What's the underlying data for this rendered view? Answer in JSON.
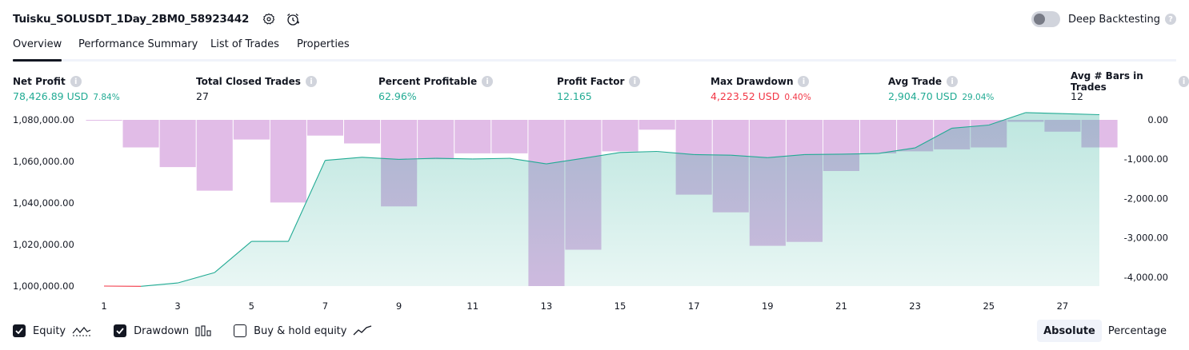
{
  "header": {
    "strategy_name": "Tuisku_SOLUSDT_1Day_2BM0_58923442",
    "deep_backtesting_label": "Deep Backtesting"
  },
  "tabs": [
    "Overview",
    "Performance Summary",
    "List of Trades",
    "Properties"
  ],
  "stats": [
    {
      "label": "Net Profit",
      "value": "78,426.89 USD",
      "sub": "7.84%",
      "color": "#22ab94"
    },
    {
      "label": "Total Closed Trades",
      "value": "27",
      "sub": "",
      "color": "#131722"
    },
    {
      "label": "Percent Profitable",
      "value": "62.96%",
      "sub": "",
      "color": "#22ab94"
    },
    {
      "label": "Profit Factor",
      "value": "12.165",
      "sub": "",
      "color": "#22ab94"
    },
    {
      "label": "Max Drawdown",
      "value": "4,223.52 USD",
      "sub": "0.40%",
      "color": "#f23645"
    },
    {
      "label": "Avg Trade",
      "value": "2,904.70 USD",
      "sub": "29.04%",
      "color": "#22ab94"
    },
    {
      "label": "Avg # Bars in Trades",
      "value": "12",
      "sub": "",
      "color": "#131722"
    }
  ],
  "chart_data": {
    "type": "area",
    "left_axis_ticks": [
      "1,080,000.00",
      "1,060,000.00",
      "1,040,000.00",
      "1,020,000.00",
      "1,000,000.00"
    ],
    "right_axis_ticks": [
      "0.00",
      "-1,000.00",
      "-2,000.00",
      "-3,000.00",
      "-4,000.00"
    ],
    "x_ticks": [
      "1",
      "3",
      "5",
      "7",
      "9",
      "11",
      "13",
      "15",
      "17",
      "19",
      "21",
      "23",
      "25",
      "27"
    ],
    "equity": {
      "x": [
        1,
        2,
        3,
        4,
        5,
        6,
        7,
        8,
        9,
        10,
        11,
        12,
        13,
        14,
        15,
        16,
        17,
        18,
        19,
        20,
        21,
        22,
        23,
        24,
        25,
        26,
        27,
        28
      ],
      "values": [
        1000000,
        999900,
        1001500,
        1006500,
        1021500,
        1021500,
        1060500,
        1062000,
        1061000,
        1061500,
        1061200,
        1061500,
        1058800,
        1061500,
        1064300,
        1064800,
        1063300,
        1063000,
        1061800,
        1063300,
        1063500,
        1063800,
        1066500,
        1076000,
        1077500,
        1083500,
        1083000,
        1082500
      ],
      "color_up": "#22ab94",
      "color_down": "#f23645"
    },
    "drawdown": {
      "x": [
        1,
        2,
        3,
        4,
        5,
        6,
        7,
        8,
        9,
        10,
        11,
        12,
        13,
        14,
        15,
        16,
        17,
        18,
        19,
        20,
        21,
        22,
        23,
        24,
        25,
        26,
        27,
        28
      ],
      "values": [
        -15,
        -700,
        -1200,
        -1800,
        -500,
        -2100,
        -400,
        -600,
        -2200,
        -1000,
        -850,
        -850,
        -4223.52,
        -3300,
        -800,
        -250,
        -1900,
        -2350,
        -3200,
        -3100,
        -1300,
        -850,
        -800,
        -750,
        -700,
        -50,
        -300,
        -700
      ],
      "color": "#ce93d8"
    },
    "left_ylim": [
      1000000,
      1080000
    ],
    "right_ylim": [
      -4223.52,
      0
    ]
  },
  "legend": {
    "equity_label": "Equity",
    "drawdown_label": "Drawdown",
    "buyhold_label": "Buy & hold equity"
  },
  "modes": [
    "Absolute",
    "Percentage"
  ]
}
